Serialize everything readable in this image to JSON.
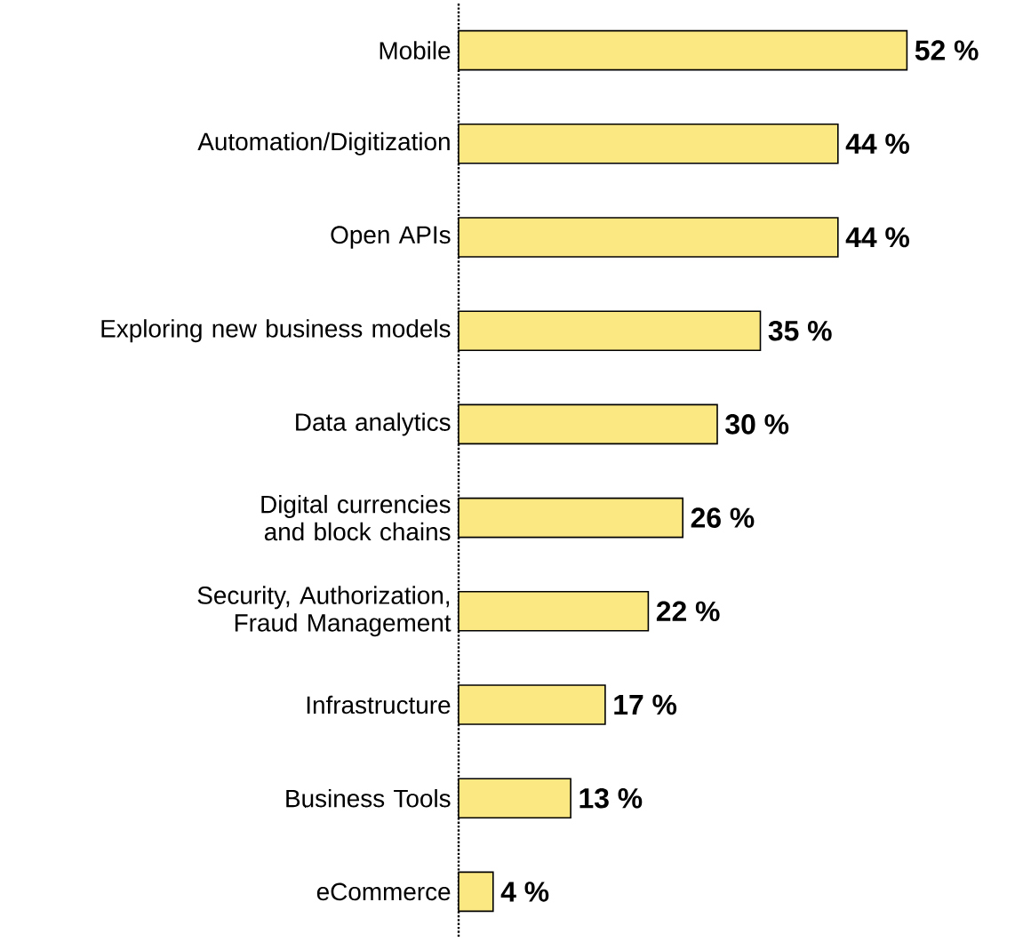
{
  "chart_data": {
    "type": "bar",
    "orientation": "horizontal",
    "categories": [
      "Mobile",
      "Automation/Digitization",
      "Open APIs",
      "Exploring new business models",
      "Data analytics",
      "Digital currencies and block chains",
      "Security, Authorization, Fraud Management",
      "Infrastructure",
      "Business Tools",
      "eCommerce"
    ],
    "values": [
      52,
      44,
      44,
      35,
      30,
      26,
      22,
      17,
      13,
      4
    ],
    "value_labels": [
      "52 %",
      "44 %",
      "44 %",
      "35 %",
      "30 %",
      "26 %",
      "22 %",
      "17 %",
      "13 %",
      "4 %"
    ],
    "color": "#fce883"
  }
}
